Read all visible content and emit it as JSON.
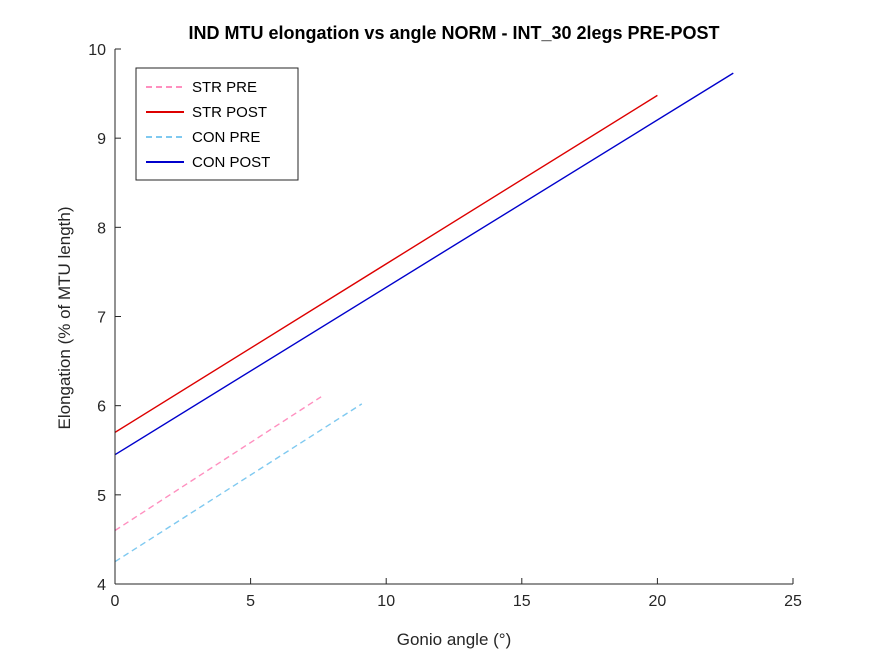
{
  "chart_data": {
    "type": "line",
    "title": "IND MTU elongation vs angle NORM - INT_30 2legs PRE-POST",
    "xlabel": "Gonio angle (°)",
    "ylabel": "Elongation (% of MTU length)",
    "xlim": [
      0,
      25
    ],
    "ylim": [
      4,
      10
    ],
    "xticks": [
      0,
      5,
      10,
      15,
      20,
      25
    ],
    "yticks": [
      4,
      5,
      6,
      7,
      8,
      9,
      10
    ],
    "grid": false,
    "legend_position": "top-left",
    "series": [
      {
        "name": "STR PRE",
        "color": "#ff8fbf",
        "dash": true,
        "x": [
          0,
          7.6
        ],
        "y": [
          4.6,
          6.1
        ]
      },
      {
        "name": "STR POST",
        "color": "#dd0000",
        "dash": false,
        "x": [
          0,
          20.0
        ],
        "y": [
          5.7,
          9.48
        ]
      },
      {
        "name": "CON PRE",
        "color": "#7fc9f0",
        "dash": true,
        "x": [
          0,
          9.1
        ],
        "y": [
          4.25,
          6.02
        ]
      },
      {
        "name": "CON POST",
        "color": "#0000cc",
        "dash": false,
        "x": [
          0,
          22.8
        ],
        "y": [
          5.45,
          9.73
        ]
      }
    ]
  }
}
